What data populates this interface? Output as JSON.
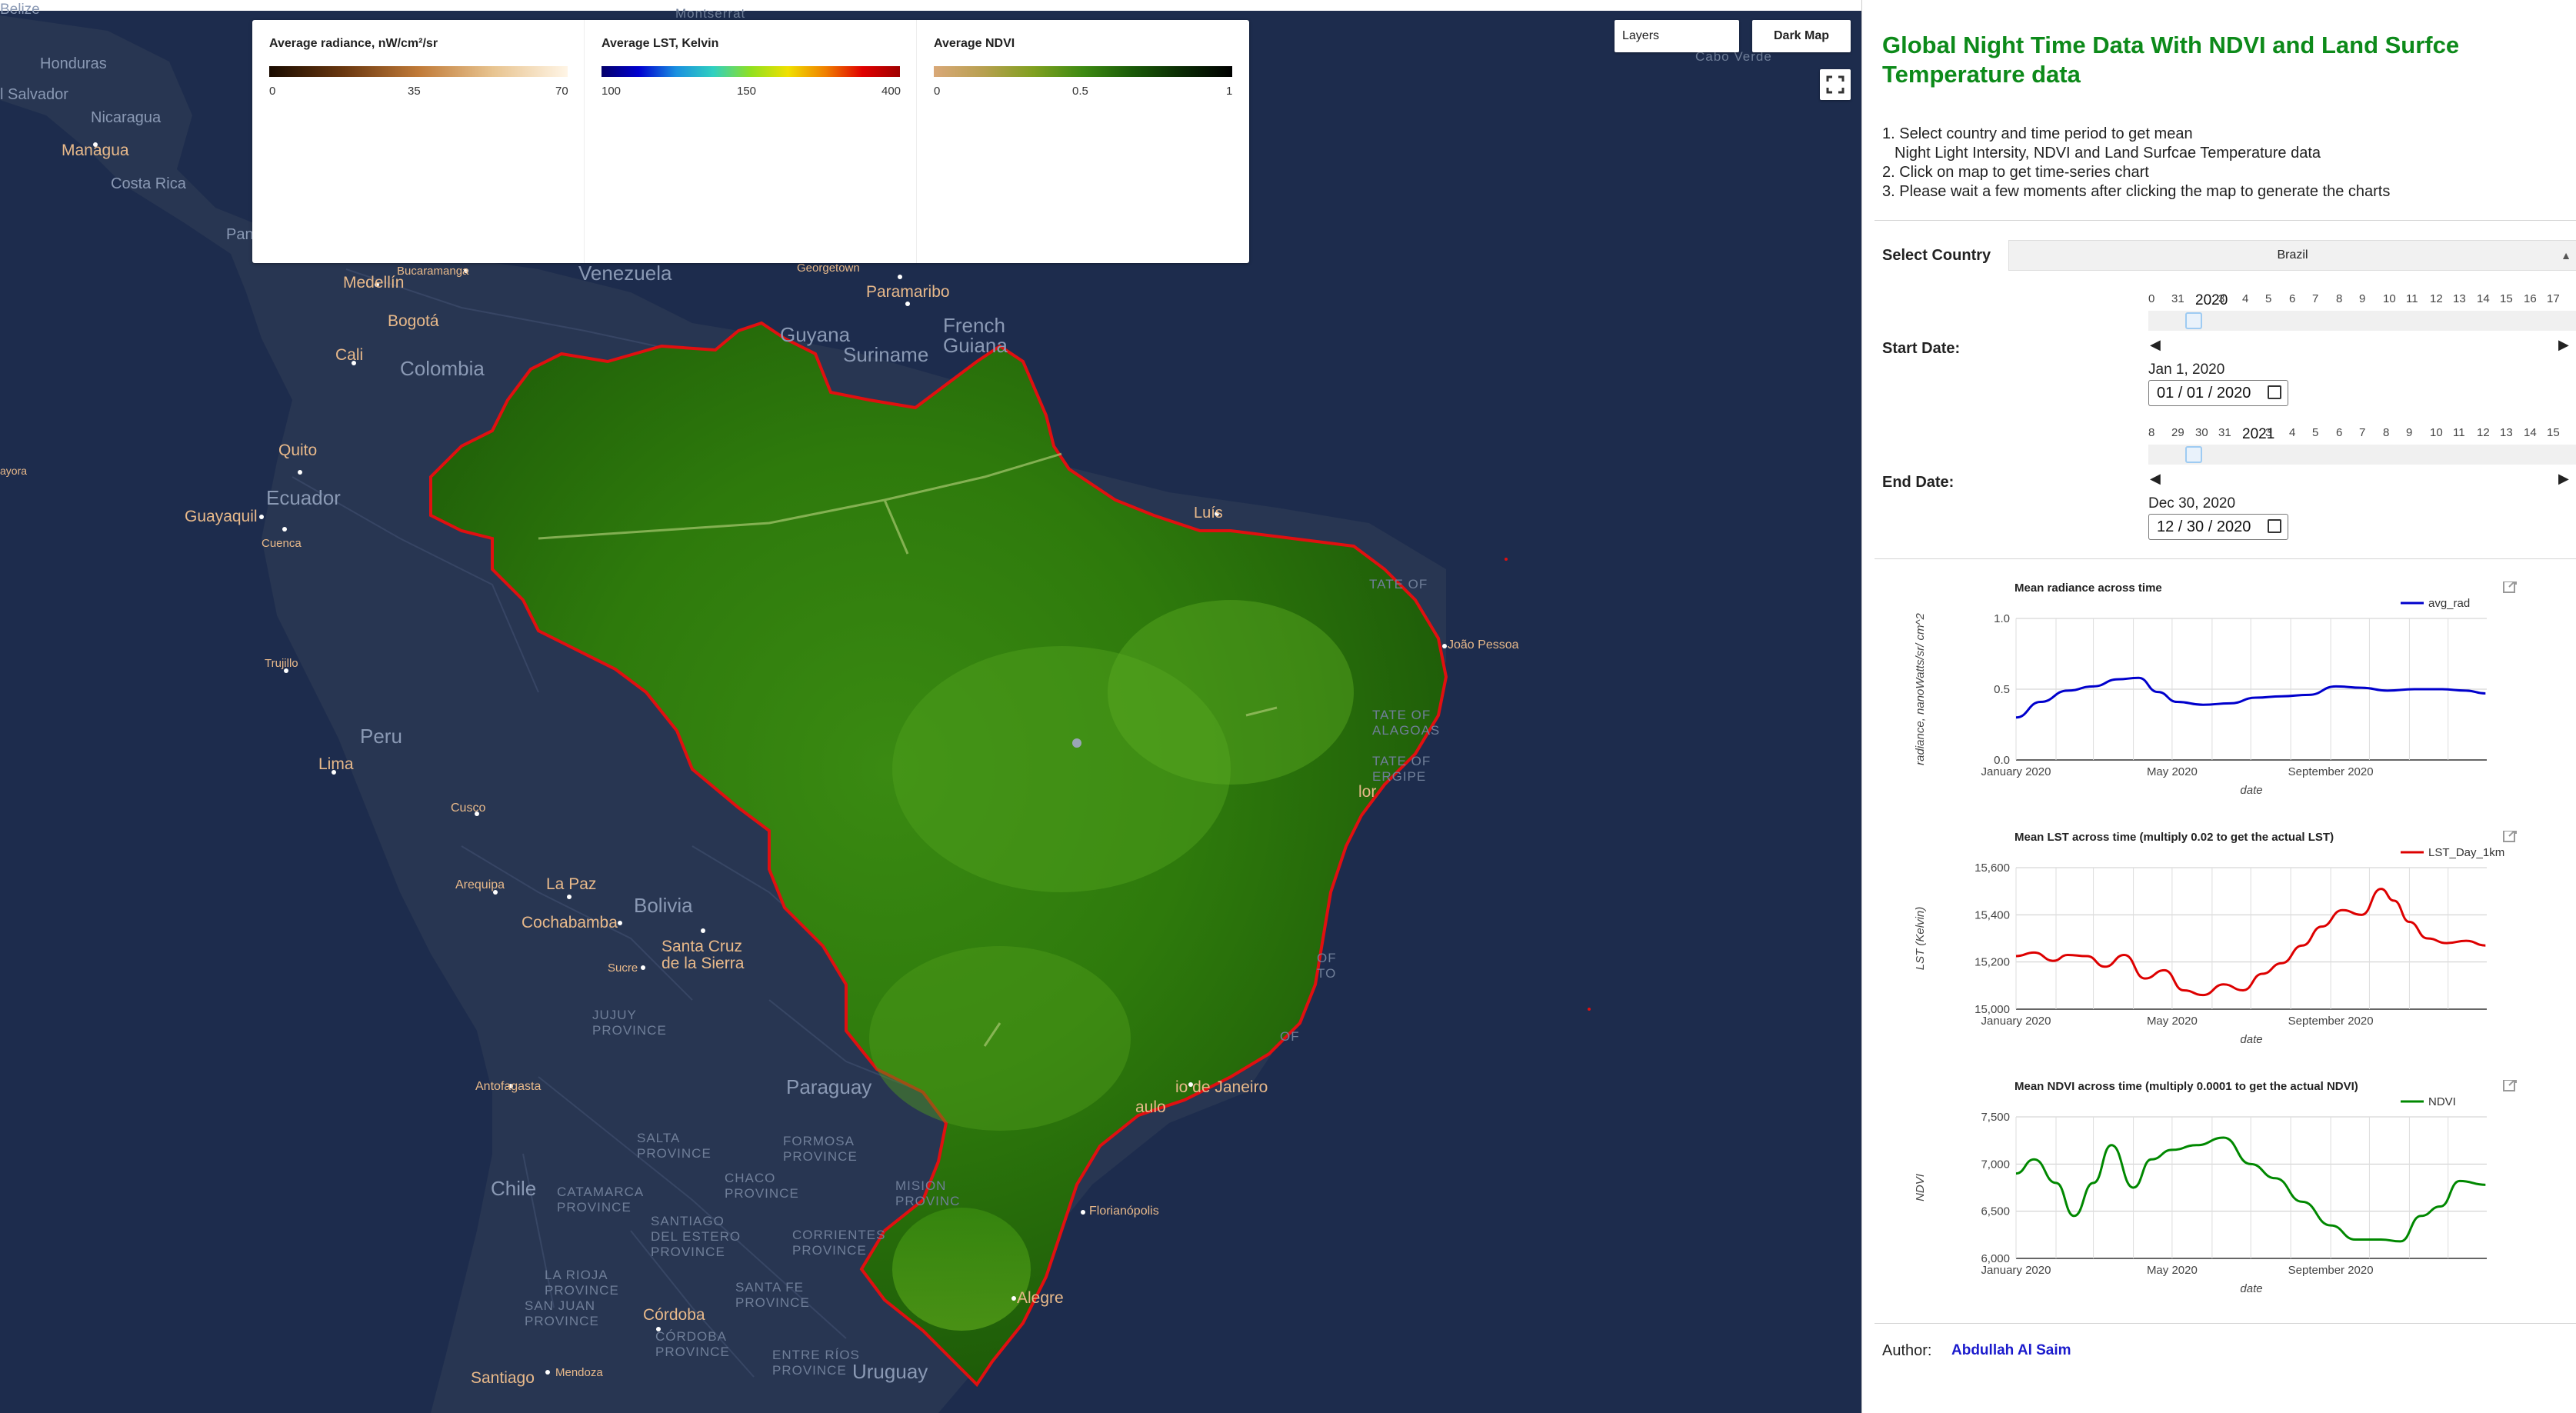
{
  "map": {
    "layers_label": "Layers",
    "dark_map_label": "Dark Map",
    "labels": {
      "belize": "Belize",
      "montserrat": "Montserrat",
      "honduras": "Honduras",
      "el_salvador": "l Salvador",
      "nicaragua": "Nicaragua",
      "managua": "Managua",
      "costa_rica": "Costa Rica",
      "pan": "Pan",
      "medellin": "Medellín",
      "bogota": "Bogotá",
      "bucaramanga": "Bucaramanga",
      "venezuela": "Venezuela",
      "georgetown": "Georgetown",
      "paramaribo": "Paramaribo",
      "cali": "Cali",
      "colombia": "Colombia",
      "guyana": "Guyana",
      "suriname": "Suriname",
      "french_guiana": "French\nGuiana",
      "cabo_verde": "Cabo Verde",
      "quito": "Quito",
      "ecuador": "Ecuador",
      "guayaquil": "Guayaquil",
      "cuenca": "Cuenca",
      "ayora": "ayora",
      "trujillo": "Trujillo",
      "peru": "Peru",
      "lima": "Lima",
      "cusco": "Cusco",
      "arequipa": "Arequipa",
      "la_paz": "La Paz",
      "bolivia": "Bolivia",
      "cochabamba": "Cochabamba",
      "santa_cruz": "Santa Cruz\nde la Sierra",
      "sucre": "Sucre",
      "jujuy": "JUJUY\nPROVINCE",
      "paraguay": "Paraguay",
      "antofagasta": "Antofagasta",
      "salta": "SALTA\nPROVINCE",
      "formosa": "FORMOSA\nPROVINCE",
      "chaco": "CHACO\nPROVINCE",
      "mision": "MISION\nPROVINC",
      "chile": "Chile",
      "catamarca": "CATAMARCA\nPROVINCE",
      "santiago_estero": "SANTIAGO\nDEL ESTERO\nPROVINCE",
      "corrientes": "CORRIENTES\nPROVINCE",
      "la_rioja": "LA RIOJA\nPROVINCE",
      "san_juan": "SAN JUAN\nPROVINCE",
      "santa_fe": "SANTA FE\nPROVINCE",
      "cordoba": "Córdoba",
      "cordoba_prov": "CÓRDOBA\nPROVINCE",
      "entre_rios": "ENTRE RÍOS\nPROVINCE",
      "uruguay": "Uruguay",
      "santiago": "Santiago",
      "mendoza": "Mendoza",
      "luis": "Luís",
      "joao_pessoa": "João Pessoa",
      "state_of_1": "TATE OF",
      "state_of_2": "TATE OF\nALAGOAS",
      "state_of_3": "TATE OF\nERGIPE",
      "salvador": "lor",
      "of_to": "OF\nTO",
      "of_4": "OF",
      "rio": "io de Janeiro",
      "sao_paulo": "aulo",
      "florianopolis": "Florianópolis",
      "porto_alegre": "Alegre"
    }
  },
  "legends": [
    {
      "title": "Average radiance, nW/cm²/sr",
      "ticks": [
        "0",
        "35",
        "70"
      ]
    },
    {
      "title": "Average LST, Kelvin",
      "ticks": [
        "100",
        "150",
        "400"
      ]
    },
    {
      "title": "Average NDVI",
      "ticks": [
        "0",
        "0.5",
        "1"
      ]
    }
  ],
  "panel": {
    "title": "Global Night Time Data With NDVI and Land Surfce Temperature data",
    "instructions": [
      "1. Select country and time period to get mean",
      "    Night Light Intersity, NDVI and Land Surfcae Temperature data",
      "2. Click on map to get time-series chart",
      "3. Please wait a few moments after clicking the map to generate the charts"
    ],
    "country_label": "Select Country",
    "country_value": "Brazil",
    "start_label": "Start Date:",
    "start_ticks": [
      "0",
      "31",
      "2020",
      "3",
      "4",
      "5",
      "6",
      "7",
      "8",
      "9",
      "10",
      "11",
      "12",
      "13",
      "14",
      "15",
      "16",
      "17"
    ],
    "start_date_text": "Jan 1, 2020",
    "start_date_input": "01 / 01 / 2020",
    "end_label": "End Date:",
    "end_ticks": [
      "8",
      "29",
      "30",
      "31",
      "2021",
      "3",
      "4",
      "5",
      "6",
      "7",
      "8",
      "9",
      "10",
      "11",
      "12",
      "13",
      "14",
      "15"
    ],
    "end_date_text": "Dec 30, 2020",
    "end_date_input": "12 / 30 / 2020",
    "author_label": "Author:",
    "author_name": "Abdullah Al Saim"
  },
  "colors": {
    "accent_green": "#0d8a1a",
    "map_bg": "#1d2c4d",
    "radiance_line": "#0000cc",
    "lst_line": "#dd0000",
    "ndvi_line": "#008800"
  },
  "chart_data": [
    {
      "type": "line",
      "title": "Mean radiance across time",
      "xlabel": "date",
      "ylabel": "radiance, nanoWatts/sr/ cm^2",
      "series": [
        {
          "name": "avg_rad",
          "x": [
            "2020-01-01",
            "2020-01-20",
            "2020-02-10",
            "2020-03-01",
            "2020-03-20",
            "2020-04-05",
            "2020-04-20",
            "2020-05-05",
            "2020-05-25",
            "2020-06-15",
            "2020-07-05",
            "2020-07-25",
            "2020-08-15",
            "2020-09-05",
            "2020-09-25",
            "2020-10-15",
            "2020-11-05",
            "2020-11-25",
            "2020-12-15",
            "2020-12-30"
          ],
          "values": [
            0.3,
            0.41,
            0.49,
            0.52,
            0.57,
            0.58,
            0.48,
            0.41,
            0.39,
            0.4,
            0.44,
            0.45,
            0.46,
            0.52,
            0.51,
            0.49,
            0.5,
            0.5,
            0.49,
            0.47
          ]
        }
      ],
      "yticks": [
        "0.0",
        "0.5",
        "1.0"
      ],
      "xticks": [
        "January 2020",
        "May 2020",
        "September 2020"
      ],
      "ylim": [
        0,
        1.0
      ]
    },
    {
      "type": "line",
      "title": "Mean LST across time (multiply 0.02 to get the actual LST)",
      "xlabel": "date",
      "ylabel": "LST (Kelvin)",
      "series": [
        {
          "name": "LST_Day_1km",
          "x": [
            "2020-01-01",
            "2020-01-15",
            "2020-01-30",
            "2020-02-10",
            "2020-02-25",
            "2020-03-10",
            "2020-03-25",
            "2020-04-10",
            "2020-04-25",
            "2020-05-10",
            "2020-05-25",
            "2020-06-10",
            "2020-06-25",
            "2020-07-10",
            "2020-07-25",
            "2020-08-10",
            "2020-08-25",
            "2020-09-10",
            "2020-09-25",
            "2020-10-10",
            "2020-10-20",
            "2020-11-01",
            "2020-11-15",
            "2020-11-30",
            "2020-12-15",
            "2020-12-30"
          ],
          "values": [
            15225,
            15240,
            15205,
            15230,
            15225,
            15180,
            15230,
            15130,
            15165,
            15080,
            15060,
            15105,
            15080,
            15150,
            15195,
            15270,
            15350,
            15420,
            15400,
            15510,
            15460,
            15370,
            15300,
            15280,
            15290,
            15270
          ]
        }
      ],
      "yticks": [
        "15,000",
        "15,200",
        "15,400",
        "15,600"
      ],
      "xticks": [
        "January 2020",
        "May 2020",
        "September 2020"
      ],
      "ylim": [
        15000,
        15600
      ]
    },
    {
      "type": "line",
      "title": "Mean NDVI across time (multiply 0.0001 to get the actual NDVI)",
      "xlabel": "date",
      "ylabel": "NDVI",
      "series": [
        {
          "name": "NDVI",
          "x": [
            "2020-01-01",
            "2020-01-15",
            "2020-02-01",
            "2020-02-15",
            "2020-03-01",
            "2020-03-15",
            "2020-04-01",
            "2020-04-15",
            "2020-05-01",
            "2020-05-20",
            "2020-06-10",
            "2020-07-01",
            "2020-07-20",
            "2020-08-10",
            "2020-09-01",
            "2020-09-20",
            "2020-10-10",
            "2020-10-25",
            "2020-11-10",
            "2020-11-25",
            "2020-12-10",
            "2020-12-30"
          ],
          "values": [
            6900,
            7050,
            6800,
            6450,
            6800,
            7200,
            6750,
            7050,
            7150,
            7200,
            7280,
            7000,
            6850,
            6600,
            6350,
            6200,
            6200,
            6180,
            6450,
            6550,
            6820,
            6780
          ]
        }
      ],
      "yticks": [
        "6,000",
        "6,500",
        "7,000",
        "7,500"
      ],
      "xticks": [
        "January 2020",
        "May 2020",
        "September 2020"
      ],
      "ylim": [
        6000,
        7500
      ]
    }
  ]
}
